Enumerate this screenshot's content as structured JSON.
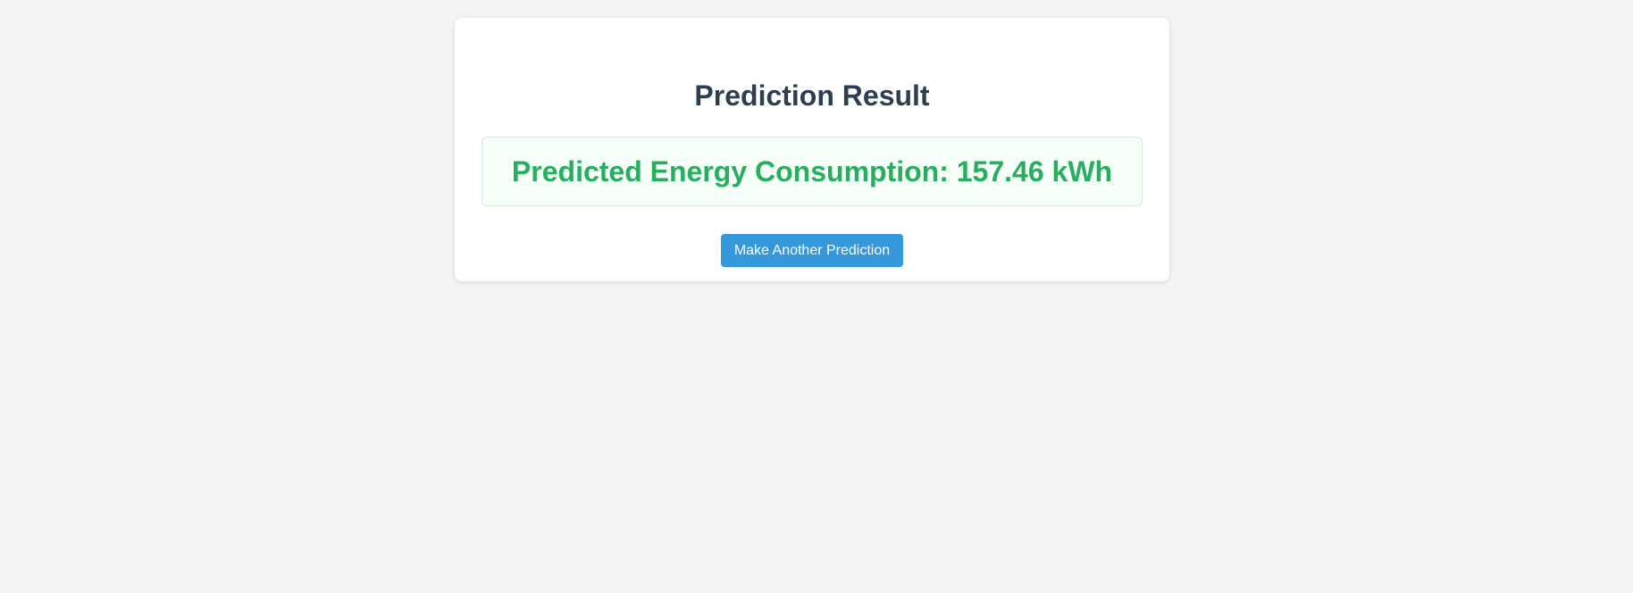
{
  "page": {
    "title": "Prediction Result"
  },
  "result": {
    "label": "Predicted Energy Consumption: 157.46 kWh"
  },
  "actions": {
    "retry_label": "Make Another Prediction"
  },
  "colors": {
    "background": "#f4f4f4",
    "title": "#2c3e50",
    "result_text": "#27ae60",
    "button": "#3498db"
  }
}
